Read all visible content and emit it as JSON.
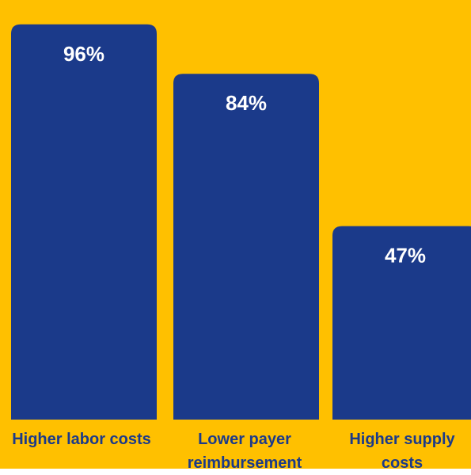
{
  "colors": {
    "background": "#FFC000",
    "bar": "#1B3A8A",
    "value_label": "#FFFFFF",
    "category_label": "#1B3A8A"
  },
  "chart_data": {
    "type": "bar",
    "categories": [
      "Higher labor costs",
      "Lower payer reimbursement",
      "Higher supply costs"
    ],
    "values": [
      96,
      84,
      47
    ],
    "data_labels": [
      "96%",
      "84%",
      "47%"
    ],
    "unit": "%",
    "ylim": [
      0,
      100
    ],
    "grid": false,
    "legend": "none"
  }
}
